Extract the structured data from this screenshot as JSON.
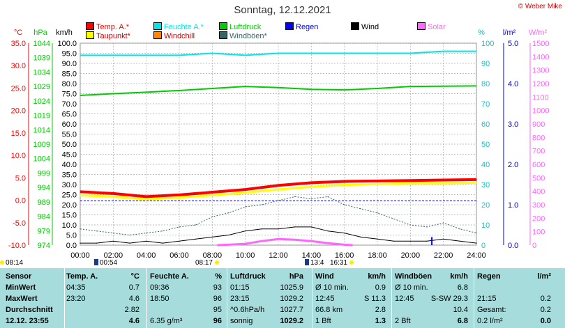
{
  "title": "Sonntag, 12.12.2021",
  "credit": "© Weber Mike",
  "legend": [
    {
      "label": "Temp. A.*",
      "color": "#ff0000"
    },
    {
      "label": "Feuchte A.*",
      "color": "#00e5e5"
    },
    {
      "label": "Luftdruck",
      "color": "#00cc00"
    },
    {
      "label": "Regen",
      "color": "#0000ff"
    },
    {
      "label": "Wind",
      "color": "#000000"
    },
    {
      "label": "Solar",
      "color": "#ff66ff"
    },
    {
      "label": "Taupunkt*",
      "color": "#ffff00"
    },
    {
      "label": "Windchill",
      "color": "#ff8800"
    },
    {
      "label": "Windböen*",
      "color": "#336666"
    }
  ],
  "axis_units": {
    "temp": "°C",
    "pressure": "hPa",
    "wind": "km/h",
    "humidity": "%",
    "rain": "l/m²",
    "solar": "W/m²"
  },
  "times_bottom": [
    {
      "label": "08:14",
      "type": "sunrise"
    },
    {
      "label": "00:54",
      "type": "moon"
    },
    {
      "label": "08:17",
      "type": "sun"
    },
    {
      "label": "13:4",
      "type": "moon"
    },
    {
      "label": "16:31",
      "type": "sun"
    }
  ],
  "chart_data": {
    "type": "line",
    "x_ticks": [
      "00:00",
      "02:00",
      "04:00",
      "06:00",
      "08:00",
      "10:00",
      "12:00",
      "14:00",
      "16:00",
      "18:00",
      "20:00",
      "22:00",
      "24:00"
    ],
    "axes": {
      "temp": {
        "ticks": [
          "35.0",
          "30.0",
          "25.0",
          "20.0",
          "15.0",
          "10.0",
          "5.0",
          "0.0",
          "-5.0",
          "-10.0"
        ],
        "range": [
          -10,
          35
        ],
        "color": "#ff0000"
      },
      "pressure": {
        "ticks": [
          "1044",
          "1039",
          "1034",
          "1029",
          "1024",
          "1019",
          "1014",
          "1009",
          "1004",
          "999",
          "994",
          "989",
          "984",
          "979",
          "974"
        ],
        "range": [
          974,
          1044
        ],
        "color": "#00cc00"
      },
      "wind": {
        "ticks": [
          "100.0",
          "95.0",
          "90.0",
          "85.0",
          "80.0",
          "75.0",
          "70.0",
          "65.0",
          "60.0",
          "55.0",
          "50.0",
          "45.0",
          "40.0",
          "35.0",
          "30.0",
          "25.0",
          "20.0",
          "15.0",
          "10.0",
          "5.0",
          "0.0"
        ],
        "range": [
          0,
          100
        ],
        "color": "#000000"
      },
      "humidity": {
        "ticks": [
          "100",
          "90",
          "80",
          "70",
          "60",
          "50",
          "40",
          "30",
          "20",
          "10",
          "0"
        ],
        "range": [
          0,
          100
        ],
        "color": "#00cccc"
      },
      "rain": {
        "ticks": [
          "5.0",
          "4.0",
          "3.0",
          "2.0",
          "1.0",
          "0.0"
        ],
        "range": [
          0,
          5
        ],
        "color": "#0000cc"
      },
      "solar": {
        "ticks": [
          "1500",
          "1400",
          "1300",
          "1200",
          "1100",
          "1000",
          "900",
          "800",
          "700",
          "600",
          "500",
          "400",
          "300",
          "200",
          "100",
          "0"
        ],
        "range": [
          0,
          1500
        ],
        "color": "#ff66ff"
      }
    },
    "series": [
      {
        "name": "Feuchte A.*",
        "axis": "humidity",
        "color": "#00e5e5",
        "x": [
          0,
          2,
          4,
          6,
          8,
          10,
          12,
          14,
          16,
          18,
          20,
          22,
          24
        ],
        "values": [
          94,
          94,
          94,
          94,
          95,
          94,
          95,
          95,
          95,
          95,
          95,
          96,
          96
        ]
      },
      {
        "name": "Luftdruck",
        "axis": "pressure",
        "color": "#00cc00",
        "x": [
          0,
          2,
          4,
          6,
          8,
          10,
          12,
          14,
          16,
          18,
          20,
          22,
          24
        ],
        "values": [
          1025.9,
          1026.5,
          1027,
          1027.6,
          1028.3,
          1029,
          1028.6,
          1028,
          1027.8,
          1028.3,
          1029,
          1029.1,
          1029.2
        ]
      },
      {
        "name": "Temp. A.*",
        "axis": "temp",
        "color": "#ff0000",
        "x": [
          0,
          2,
          4,
          6,
          8,
          10,
          12,
          14,
          16,
          18,
          20,
          22,
          24
        ],
        "values": [
          1.9,
          1.5,
          0.8,
          1.2,
          1.8,
          2.4,
          3.3,
          3.9,
          4.2,
          4.3,
          4.4,
          4.5,
          4.6
        ]
      },
      {
        "name": "Taupunkt*",
        "axis": "temp",
        "color": "#ffff00",
        "x": [
          0,
          2,
          4,
          6,
          8,
          10,
          12,
          14,
          16,
          18,
          20,
          22,
          24
        ],
        "values": [
          1.1,
          0.8,
          0.2,
          0.6,
          1.1,
          1.7,
          2.4,
          3.0,
          3.4,
          3.6,
          3.8,
          3.8,
          3.9
        ]
      },
      {
        "name": "Windböen*",
        "axis": "wind",
        "color": "#336666",
        "x": [
          0,
          1,
          2,
          3,
          4,
          5,
          6,
          7,
          8,
          9,
          10,
          11,
          12,
          13,
          14,
          15,
          16,
          17,
          18,
          19,
          20,
          21,
          22,
          23,
          24
        ],
        "values": [
          8,
          7,
          6,
          5,
          6,
          7,
          9,
          10,
          14,
          16,
          19,
          20,
          22,
          24,
          23,
          24,
          20,
          18,
          16,
          13,
          10,
          9,
          11,
          8,
          6
        ]
      },
      {
        "name": "Wind",
        "axis": "wind",
        "color": "#000000",
        "x": [
          0,
          1,
          2,
          3,
          4,
          5,
          6,
          7,
          8,
          9,
          10,
          11,
          12,
          13,
          14,
          15,
          16,
          17,
          18,
          19,
          20,
          21,
          22,
          23,
          24
        ],
        "values": [
          1,
          1,
          2,
          1,
          2,
          1,
          2,
          3,
          4,
          5,
          7,
          8,
          8,
          9,
          9,
          7,
          6,
          4,
          3,
          2,
          2,
          2,
          3,
          2,
          1
        ]
      },
      {
        "name": "Solar",
        "axis": "solar",
        "color": "#ff66ff",
        "x": [
          8.3,
          9,
          10,
          11,
          12,
          13,
          14,
          15,
          16,
          16.5
        ],
        "values": [
          0,
          3,
          10,
          30,
          45,
          40,
          30,
          15,
          3,
          0
        ]
      }
    ],
    "rain_events": [
      {
        "x": 21.3,
        "value": 0.2
      }
    ],
    "reference_lines": [
      {
        "axis": "rain",
        "value": 1.1,
        "color": "#0000cc",
        "style": "dashed"
      }
    ]
  },
  "stats": {
    "headers": [
      "Sensor",
      "Temp. A.",
      "°C",
      "Feuchte A.",
      "%",
      "Luftdruck",
      "hPa",
      "Wind",
      "km/h",
      "Windböen",
      "km/h",
      "Regen",
      "l/m²"
    ],
    "rows": [
      {
        "label": "MinWert",
        "c": [
          "04:35",
          "0.7",
          "09:36",
          "93",
          "01:15",
          "1025.9",
          "Ø 10 min.",
          "0.9",
          "Ø 10 min.",
          "6.8",
          "",
          ""
        ]
      },
      {
        "label": "MaxWert",
        "c": [
          "23:20",
          "4.6",
          "18:50",
          "96",
          "23:15",
          "1029.2",
          "12:45",
          "S 11.3",
          "12:45",
          "S-SW 29.3",
          "21:15",
          "0.2"
        ]
      },
      {
        "label": "Durchschnitt",
        "c": [
          "",
          "2.82",
          "",
          "95",
          "^0.6hPa/h",
          "1027.7",
          "66.8 km",
          "2.8",
          "",
          "10.4",
          "Gesamt:",
          "0.2"
        ]
      },
      {
        "label": "12.12. 23:55",
        "c": [
          "",
          "4.6",
          "6.35 g/m³",
          "96",
          "sonnig",
          "1029.2",
          "1 Bft",
          "1.3",
          "2 Bft",
          "6.8",
          "0.2 l/m²",
          "0.0"
        ]
      }
    ]
  }
}
